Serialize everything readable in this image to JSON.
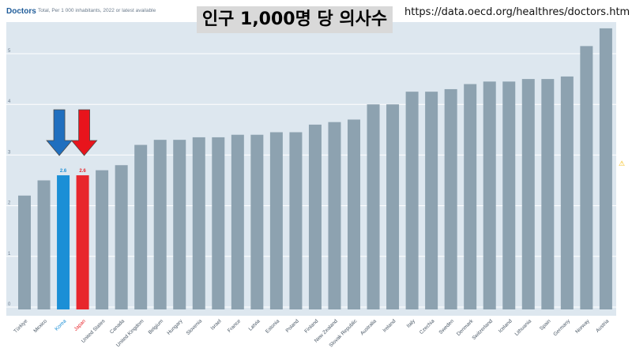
{
  "header": {
    "brand": "Doctors",
    "subtitle": "Total, Per 1 000 inhabitants, 2022 or latest available"
  },
  "overlay": {
    "title": "인구 1,000명 당 의사수",
    "url": "https://data.oecd.org/healthres/doctors.htm"
  },
  "warning_icon": "warning-triangle-icon",
  "chart_data": {
    "type": "bar",
    "title": "",
    "xlabel": "",
    "ylabel": "",
    "ylim": [
      0,
      5.5
    ],
    "yticks": [
      "0",
      "1",
      "2",
      "3",
      "4",
      "5"
    ],
    "grid": true,
    "categories": [
      "Türkiye",
      "Mexico",
      "Korea",
      "Japan",
      "United States",
      "Canada",
      "United Kingdom",
      "Belgium",
      "Hungary",
      "Slovenia",
      "Israel",
      "France",
      "Latvia",
      "Estonia",
      "Poland",
      "Finland",
      "New Zealand",
      "Slovak Republic",
      "Australia",
      "Ireland",
      "Italy",
      "Czechia",
      "Sweden",
      "Denmark",
      "Switzerland",
      "Iceland",
      "Lithuania",
      "Spain",
      "Germany",
      "Norway",
      "Austria"
    ],
    "values": [
      2.2,
      2.5,
      2.6,
      2.6,
      2.7,
      2.8,
      3.2,
      3.3,
      3.3,
      3.35,
      3.35,
      3.4,
      3.4,
      3.45,
      3.45,
      3.6,
      3.65,
      3.7,
      4.0,
      4.0,
      4.25,
      4.25,
      4.3,
      4.4,
      4.45,
      4.45,
      4.5,
      4.5,
      4.55,
      5.15,
      5.5
    ],
    "data_labels": [
      {
        "category": "Korea",
        "text": "2.6"
      },
      {
        "category": "Japan",
        "text": "2.6"
      }
    ],
    "colors": {
      "default_bar": "#8da2b0",
      "highlight": {
        "Korea": "#1b8fd6",
        "Japan": "#e8262c"
      },
      "plot_background": "#dde7ef",
      "arrow_korea": "#1f6fbf",
      "arrow_japan": "#e8141c"
    },
    "arrows": [
      {
        "category": "Korea",
        "icon": "down-arrow-icon"
      },
      {
        "category": "Japan",
        "icon": "down-arrow-icon"
      }
    ]
  }
}
